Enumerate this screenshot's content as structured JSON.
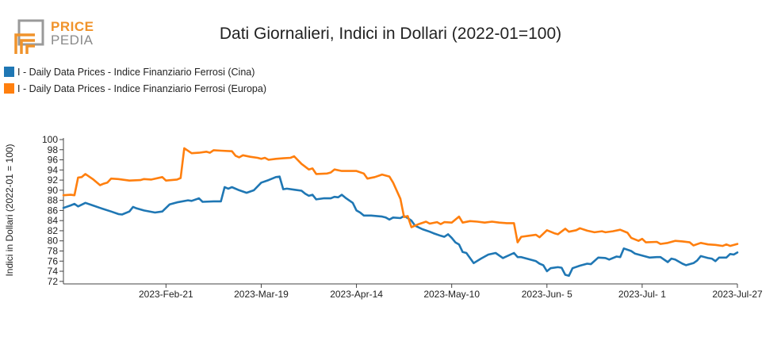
{
  "logo": {
    "word1": "PRICE",
    "word2": "PEDIA"
  },
  "colors": {
    "cina": "#1f77b4",
    "europa": "#ff7f0e",
    "logo_orange": "#f0932b",
    "logo_gray": "#9a9a9a"
  },
  "chart_data": {
    "type": "line",
    "title": "Dati Giornalieri, Indici in Dollari (2022-01=100)",
    "xlabel": "",
    "ylabel": "Indici in Dollari (2022-01 = 100)",
    "xlim": [
      "2023-01-24",
      "2023-07-27"
    ],
    "ylim": [
      71.5,
      100
    ],
    "yticks": [
      72,
      74,
      76,
      78,
      80,
      82,
      84,
      86,
      88,
      90,
      92,
      94,
      96,
      98,
      100
    ],
    "xticks": [
      {
        "date": "2023-02-21",
        "label": "2023-Feb-21"
      },
      {
        "date": "2023-03-19",
        "label": "2023-Mar-19"
      },
      {
        "date": "2023-04-14",
        "label": "2023-Apr-14"
      },
      {
        "date": "2023-05-10",
        "label": "2023-May-10"
      },
      {
        "date": "2023-06-05",
        "label": "2023-Jun- 5"
      },
      {
        "date": "2023-07-01",
        "label": "2023-Jul- 1"
      },
      {
        "date": "2023-07-27",
        "label": "2023-Jul-27"
      }
    ],
    "grid": false,
    "legend_position": "top-left",
    "series": [
      {
        "name": "I - Daily Data Prices - Indice Finanziario Ferrosi (Cina)",
        "color": "#1f77b4",
        "points": [
          [
            "2023-01-24",
            86.5
          ],
          [
            "2023-01-26",
            87.0
          ],
          [
            "2023-01-27",
            87.3
          ],
          [
            "2023-01-28",
            86.8
          ],
          [
            "2023-01-30",
            87.5
          ],
          [
            "2023-02-01",
            87.0
          ],
          [
            "2023-02-03",
            86.5
          ],
          [
            "2023-02-06",
            85.8
          ],
          [
            "2023-02-08",
            85.3
          ],
          [
            "2023-02-09",
            85.2
          ],
          [
            "2023-02-11",
            85.8
          ],
          [
            "2023-02-12",
            86.7
          ],
          [
            "2023-02-13",
            86.4
          ],
          [
            "2023-02-15",
            86.0
          ],
          [
            "2023-02-18",
            85.6
          ],
          [
            "2023-02-20",
            85.8
          ],
          [
            "2023-02-22",
            87.2
          ],
          [
            "2023-02-24",
            87.6
          ],
          [
            "2023-02-27",
            88.0
          ],
          [
            "2023-02-28",
            87.9
          ],
          [
            "2023-03-02",
            88.4
          ],
          [
            "2023-03-03",
            87.7
          ],
          [
            "2023-03-06",
            87.8
          ],
          [
            "2023-03-08",
            87.8
          ],
          [
            "2023-03-09",
            90.6
          ],
          [
            "2023-03-10",
            90.3
          ],
          [
            "2023-03-11",
            90.6
          ],
          [
            "2023-03-13",
            90.0
          ],
          [
            "2023-03-15",
            89.5
          ],
          [
            "2023-03-17",
            90.0
          ],
          [
            "2023-03-19",
            91.5
          ],
          [
            "2023-03-21",
            92.0
          ],
          [
            "2023-03-23",
            92.6
          ],
          [
            "2023-03-24",
            92.7
          ],
          [
            "2023-03-25",
            90.2
          ],
          [
            "2023-03-26",
            90.3
          ],
          [
            "2023-03-28",
            90.1
          ],
          [
            "2023-03-30",
            89.9
          ],
          [
            "2023-03-31",
            89.3
          ],
          [
            "2023-04-01",
            88.9
          ],
          [
            "2023-04-02",
            89.1
          ],
          [
            "2023-04-03",
            88.2
          ],
          [
            "2023-04-05",
            88.4
          ],
          [
            "2023-04-07",
            88.4
          ],
          [
            "2023-04-08",
            88.7
          ],
          [
            "2023-04-09",
            88.6
          ],
          [
            "2023-04-10",
            89.1
          ],
          [
            "2023-04-11",
            88.5
          ],
          [
            "2023-04-13",
            87.5
          ],
          [
            "2023-04-14",
            86.0
          ],
          [
            "2023-04-15",
            85.6
          ],
          [
            "2023-04-16",
            85.0
          ],
          [
            "2023-04-18",
            85.0
          ],
          [
            "2023-04-21",
            84.8
          ],
          [
            "2023-04-22",
            84.6
          ],
          [
            "2023-04-23",
            84.2
          ],
          [
            "2023-04-24",
            84.6
          ],
          [
            "2023-04-26",
            84.5
          ],
          [
            "2023-04-27",
            84.9
          ],
          [
            "2023-04-28",
            84.5
          ],
          [
            "2023-04-29",
            84.0
          ],
          [
            "2023-04-30",
            83.0
          ],
          [
            "2023-05-02",
            82.3
          ],
          [
            "2023-05-04",
            81.8
          ],
          [
            "2023-05-05",
            81.5
          ],
          [
            "2023-05-07",
            81.0
          ],
          [
            "2023-05-08",
            80.8
          ],
          [
            "2023-05-09",
            81.3
          ],
          [
            "2023-05-10",
            80.6
          ],
          [
            "2023-05-11",
            79.7
          ],
          [
            "2023-05-12",
            79.3
          ],
          [
            "2023-05-13",
            77.8
          ],
          [
            "2023-05-14",
            77.6
          ],
          [
            "2023-05-16",
            75.6
          ],
          [
            "2023-05-18",
            76.5
          ],
          [
            "2023-05-20",
            77.3
          ],
          [
            "2023-05-22",
            77.6
          ],
          [
            "2023-05-24",
            76.6
          ],
          [
            "2023-05-27",
            77.6
          ],
          [
            "2023-05-28",
            76.8
          ],
          [
            "2023-05-29",
            76.8
          ],
          [
            "2023-05-31",
            76.4
          ],
          [
            "2023-06-02",
            76.0
          ],
          [
            "2023-06-03",
            75.5
          ],
          [
            "2023-06-04",
            75.2
          ],
          [
            "2023-06-05",
            74.0
          ],
          [
            "2023-06-06",
            74.6
          ],
          [
            "2023-06-08",
            74.8
          ],
          [
            "2023-06-09",
            74.7
          ],
          [
            "2023-06-10",
            73.3
          ],
          [
            "2023-06-11",
            73.1
          ],
          [
            "2023-06-12",
            74.6
          ],
          [
            "2023-06-14",
            75.1
          ],
          [
            "2023-06-16",
            75.5
          ],
          [
            "2023-06-17",
            75.4
          ],
          [
            "2023-06-19",
            76.7
          ],
          [
            "2023-06-21",
            76.6
          ],
          [
            "2023-06-22",
            76.3
          ],
          [
            "2023-06-24",
            76.9
          ],
          [
            "2023-06-25",
            76.8
          ],
          [
            "2023-06-26",
            78.5
          ],
          [
            "2023-06-28",
            78.0
          ],
          [
            "2023-06-29",
            77.5
          ],
          [
            "2023-07-01",
            77.1
          ],
          [
            "2023-07-03",
            76.7
          ],
          [
            "2023-07-05",
            76.8
          ],
          [
            "2023-07-06",
            76.8
          ],
          [
            "2023-07-08",
            75.8
          ],
          [
            "2023-07-09",
            76.5
          ],
          [
            "2023-07-10",
            76.3
          ],
          [
            "2023-07-12",
            75.5
          ],
          [
            "2023-07-13",
            75.2
          ],
          [
            "2023-07-15",
            75.6
          ],
          [
            "2023-07-16",
            76.1
          ],
          [
            "2023-07-17",
            77.0
          ],
          [
            "2023-07-19",
            76.6
          ],
          [
            "2023-07-20",
            76.5
          ],
          [
            "2023-07-21",
            76.0
          ],
          [
            "2023-07-22",
            76.7
          ],
          [
            "2023-07-24",
            76.7
          ],
          [
            "2023-07-25",
            77.4
          ],
          [
            "2023-07-26",
            77.3
          ],
          [
            "2023-07-27",
            77.7
          ]
        ]
      },
      {
        "name": "I - Daily Data Prices - Indice Finanziario Ferrosi (Europa)",
        "color": "#ff7f0e",
        "points": [
          [
            "2023-01-24",
            89.0
          ],
          [
            "2023-01-26",
            89.1
          ],
          [
            "2023-01-27",
            89.0
          ],
          [
            "2023-01-28",
            92.5
          ],
          [
            "2023-01-29",
            92.6
          ],
          [
            "2023-01-30",
            93.2
          ],
          [
            "2023-02-01",
            92.2
          ],
          [
            "2023-02-03",
            91.0
          ],
          [
            "2023-02-04",
            91.3
          ],
          [
            "2023-02-05",
            91.5
          ],
          [
            "2023-02-06",
            92.3
          ],
          [
            "2023-02-08",
            92.2
          ],
          [
            "2023-02-11",
            91.9
          ],
          [
            "2023-02-14",
            92.0
          ],
          [
            "2023-02-15",
            92.2
          ],
          [
            "2023-02-17",
            92.1
          ],
          [
            "2023-02-20",
            92.6
          ],
          [
            "2023-02-21",
            91.9
          ],
          [
            "2023-02-24",
            92.1
          ],
          [
            "2023-02-25",
            92.4
          ],
          [
            "2023-02-26",
            98.3
          ],
          [
            "2023-02-28",
            97.3
          ],
          [
            "2023-03-02",
            97.4
          ],
          [
            "2023-03-04",
            97.6
          ],
          [
            "2023-03-05",
            97.4
          ],
          [
            "2023-03-06",
            97.9
          ],
          [
            "2023-03-08",
            97.8
          ],
          [
            "2023-03-11",
            97.7
          ],
          [
            "2023-03-12",
            96.8
          ],
          [
            "2023-03-13",
            96.5
          ],
          [
            "2023-03-14",
            96.9
          ],
          [
            "2023-03-16",
            96.6
          ],
          [
            "2023-03-18",
            96.4
          ],
          [
            "2023-03-19",
            96.2
          ],
          [
            "2023-03-20",
            96.4
          ],
          [
            "2023-03-21",
            96.0
          ],
          [
            "2023-03-23",
            96.2
          ],
          [
            "2023-03-25",
            96.3
          ],
          [
            "2023-03-27",
            96.4
          ],
          [
            "2023-03-28",
            96.7
          ],
          [
            "2023-03-30",
            95.2
          ],
          [
            "2023-04-01",
            94.1
          ],
          [
            "2023-04-02",
            94.3
          ],
          [
            "2023-04-03",
            93.2
          ],
          [
            "2023-04-06",
            93.3
          ],
          [
            "2023-04-07",
            93.5
          ],
          [
            "2023-04-08",
            94.1
          ],
          [
            "2023-04-10",
            93.8
          ],
          [
            "2023-04-14",
            93.8
          ],
          [
            "2023-04-16",
            93.3
          ],
          [
            "2023-04-17",
            92.3
          ],
          [
            "2023-04-19",
            92.6
          ],
          [
            "2023-04-21",
            93.1
          ],
          [
            "2023-04-23",
            92.7
          ],
          [
            "2023-04-24",
            91.5
          ],
          [
            "2023-04-26",
            88.3
          ],
          [
            "2023-04-27",
            84.7
          ],
          [
            "2023-04-28",
            84.9
          ],
          [
            "2023-04-29",
            82.7
          ],
          [
            "2023-05-01",
            83.3
          ],
          [
            "2023-05-03",
            83.8
          ],
          [
            "2023-05-04",
            83.4
          ],
          [
            "2023-05-06",
            83.7
          ],
          [
            "2023-05-07",
            83.3
          ],
          [
            "2023-05-08",
            83.7
          ],
          [
            "2023-05-10",
            83.6
          ],
          [
            "2023-05-12",
            84.8
          ],
          [
            "2023-05-13",
            83.6
          ],
          [
            "2023-05-15",
            83.9
          ],
          [
            "2023-05-17",
            83.8
          ],
          [
            "2023-05-19",
            83.6
          ],
          [
            "2023-05-21",
            83.8
          ],
          [
            "2023-05-23",
            83.6
          ],
          [
            "2023-05-25",
            83.5
          ],
          [
            "2023-05-27",
            83.5
          ],
          [
            "2023-05-28",
            79.7
          ],
          [
            "2023-05-29",
            80.8
          ],
          [
            "2023-05-31",
            81.0
          ],
          [
            "2023-06-02",
            81.2
          ],
          [
            "2023-06-03",
            80.7
          ],
          [
            "2023-06-05",
            82.1
          ],
          [
            "2023-06-07",
            81.5
          ],
          [
            "2023-06-08",
            81.3
          ],
          [
            "2023-06-10",
            82.4
          ],
          [
            "2023-06-11",
            81.8
          ],
          [
            "2023-06-13",
            82.1
          ],
          [
            "2023-06-14",
            82.5
          ],
          [
            "2023-06-16",
            82.0
          ],
          [
            "2023-06-18",
            81.7
          ],
          [
            "2023-06-20",
            81.9
          ],
          [
            "2023-06-21",
            81.7
          ],
          [
            "2023-06-23",
            81.9
          ],
          [
            "2023-06-25",
            82.2
          ],
          [
            "2023-06-27",
            81.6
          ],
          [
            "2023-06-28",
            80.6
          ],
          [
            "2023-06-30",
            80.0
          ],
          [
            "2023-07-01",
            80.4
          ],
          [
            "2023-07-02",
            79.7
          ],
          [
            "2023-07-05",
            79.8
          ],
          [
            "2023-07-06",
            79.4
          ],
          [
            "2023-07-08",
            79.6
          ],
          [
            "2023-07-10",
            80.0
          ],
          [
            "2023-07-12",
            79.9
          ],
          [
            "2023-07-14",
            79.7
          ],
          [
            "2023-07-15",
            79.1
          ],
          [
            "2023-07-17",
            79.6
          ],
          [
            "2023-07-19",
            79.3
          ],
          [
            "2023-07-21",
            79.2
          ],
          [
            "2023-07-23",
            79.0
          ],
          [
            "2023-07-24",
            79.3
          ],
          [
            "2023-07-25",
            79.0
          ],
          [
            "2023-07-27",
            79.4
          ]
        ]
      }
    ]
  }
}
